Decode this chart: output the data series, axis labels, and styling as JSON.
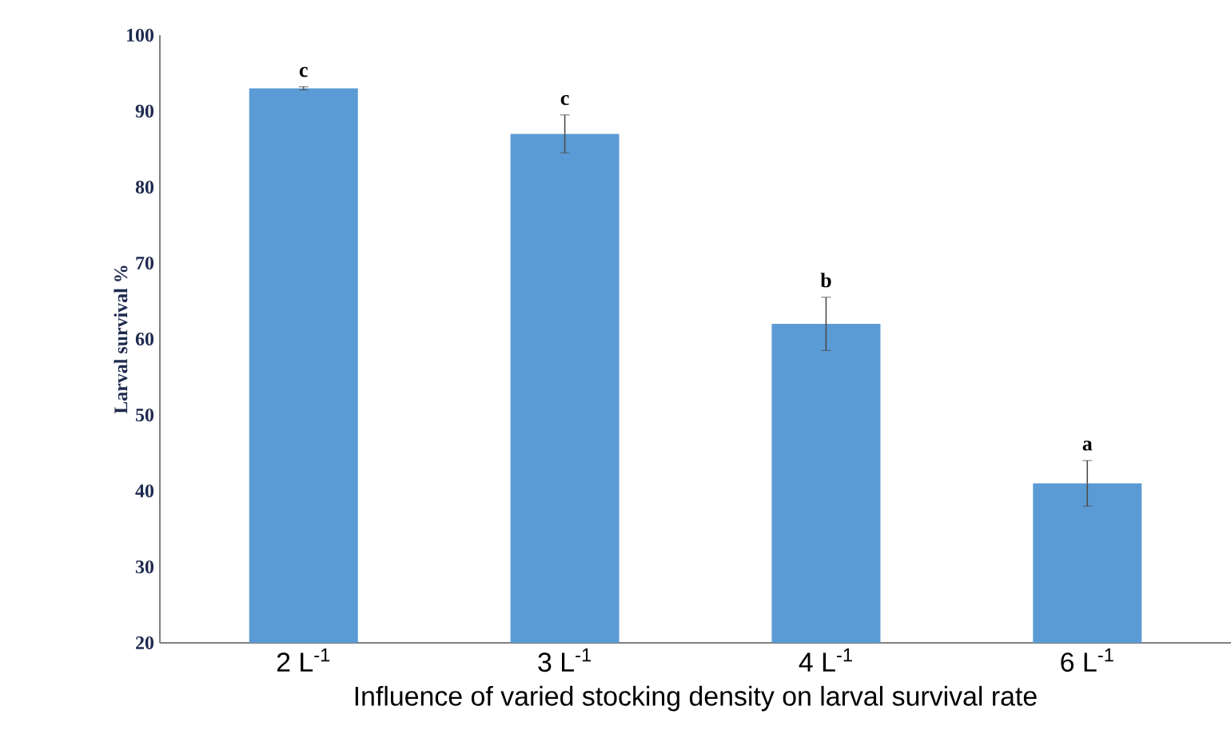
{
  "chart_data": {
    "type": "bar",
    "xlabel": "Influence of varied stocking density on larval survival rate",
    "ylabel": "Larval survival %",
    "categories": [
      "2 L$^{-1}$",
      "3 L$^{-1}$",
      "4 L$^{-1}$",
      "6 L$^{-1}$"
    ],
    "values": [
      93,
      87,
      62,
      41
    ],
    "errors": [
      0.2,
      2.5,
      3.5,
      3
    ],
    "color": "#5b9bd5",
    "ylim": [
      20,
      100
    ],
    "yticks": [
      20,
      30,
      40,
      50,
      60,
      70,
      80,
      90,
      100
    ],
    "annotations": [
      "c",
      "c",
      "b",
      "a"
    ]
  }
}
